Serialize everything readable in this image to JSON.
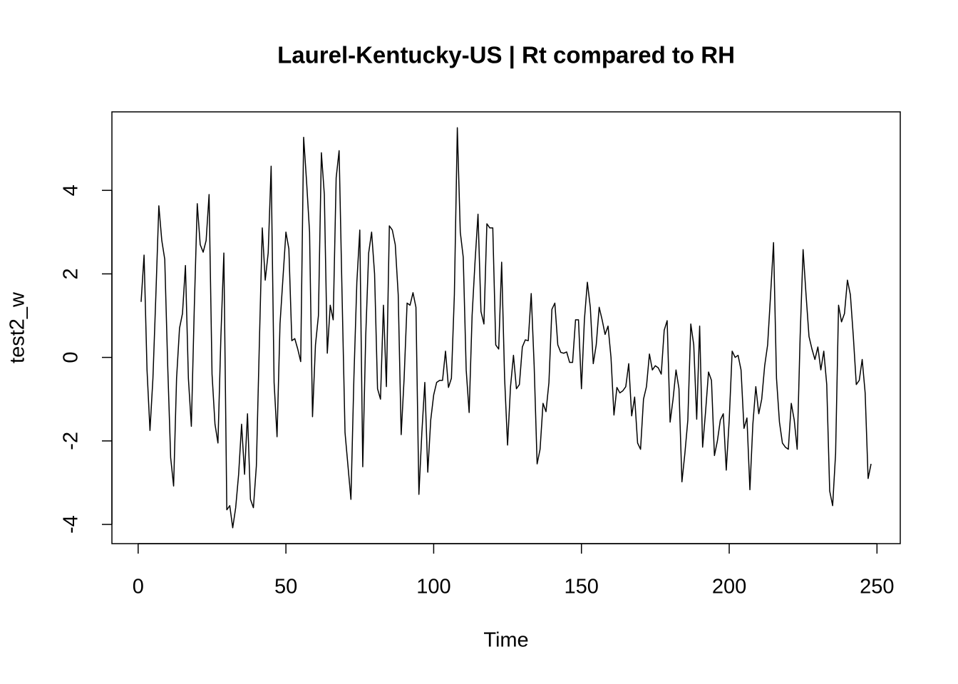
{
  "chart_data": {
    "type": "line",
    "title": "Laurel-Kentucky-US | Rt compared to RH",
    "xlabel": "Time",
    "ylabel": "test2_w",
    "x": [
      1,
      2,
      3,
      4,
      5,
      6,
      7,
      8,
      9,
      10,
      11,
      12,
      13,
      14,
      15,
      16,
      17,
      18,
      19,
      20,
      21,
      22,
      23,
      24,
      25,
      26,
      27,
      28,
      29,
      30,
      31,
      32,
      33,
      34,
      35,
      36,
      37,
      38,
      39,
      40,
      41,
      42,
      43,
      44,
      45,
      46,
      47,
      48,
      49,
      50,
      51,
      52,
      53,
      54,
      55,
      56,
      57,
      58,
      59,
      60,
      61,
      62,
      63,
      64,
      65,
      66,
      67,
      68,
      69,
      70,
      71,
      72,
      73,
      74,
      75,
      76,
      77,
      78,
      79,
      80,
      81,
      82,
      83,
      84,
      85,
      86,
      87,
      88,
      89,
      90,
      91,
      92,
      93,
      94,
      95,
      96,
      97,
      98,
      99,
      100,
      101,
      102,
      103,
      104,
      105,
      106,
      107,
      108,
      109,
      110,
      111,
      112,
      113,
      114,
      115,
      116,
      117,
      118,
      119,
      120,
      121,
      122,
      123,
      124,
      125,
      126,
      127,
      128,
      129,
      130,
      131,
      132,
      133,
      134,
      135,
      136,
      137,
      138,
      139,
      140,
      141,
      142,
      143,
      144,
      145,
      146,
      147,
      148,
      149,
      150,
      151,
      152,
      153,
      154,
      155,
      156,
      157,
      158,
      159,
      160,
      161,
      162,
      163,
      164,
      165,
      166,
      167,
      168,
      169,
      170,
      171,
      172,
      173,
      174,
      175,
      176,
      177,
      178,
      179,
      180,
      181,
      182,
      183,
      184,
      185,
      186,
      187,
      188,
      189,
      190,
      191,
      192,
      193,
      194,
      195,
      196,
      197,
      198,
      199,
      200,
      201,
      202,
      203,
      204,
      205,
      206,
      207,
      208,
      209,
      210,
      211,
      212,
      213,
      214,
      215,
      216,
      217,
      218,
      219,
      220,
      221,
      222,
      223,
      224,
      225,
      226,
      227,
      228,
      229,
      230,
      231,
      232,
      233,
      234,
      235,
      236,
      237,
      238,
      239,
      240,
      241,
      242,
      243,
      244,
      245,
      246,
      247,
      248
    ],
    "series": [
      {
        "color": "#000000",
        "values": [
          1.33,
          2.45,
          -0.3,
          -1.75,
          -0.5,
          1.5,
          3.63,
          2.8,
          2.35,
          -0.2,
          -2.4,
          -3.08,
          -0.5,
          0.7,
          1.05,
          2.2,
          -0.5,
          -1.65,
          1.2,
          3.68,
          2.7,
          2.52,
          2.8,
          3.9,
          -0.4,
          -1.6,
          -2.05,
          0.5,
          2.5,
          -3.65,
          -3.55,
          -4.08,
          -3.6,
          -2.8,
          -1.6,
          -2.8,
          -1.35,
          -3.4,
          -3.6,
          -2.6,
          0.3,
          3.1,
          1.85,
          2.5,
          4.58,
          -0.6,
          -1.9,
          0.8,
          1.9,
          3.0,
          2.6,
          0.4,
          0.45,
          0.2,
          -0.1,
          5.27,
          4.2,
          3.0,
          -1.42,
          0.3,
          1.0,
          4.9,
          3.9,
          0.1,
          1.25,
          0.9,
          4.3,
          4.95,
          1.5,
          -1.8,
          -2.6,
          -3.4,
          -0.5,
          1.8,
          3.05,
          -2.62,
          0.5,
          2.5,
          3.0,
          2.0,
          -0.75,
          -1.0,
          1.25,
          -0.7,
          3.15,
          3.05,
          2.7,
          1.5,
          -1.85,
          -0.5,
          1.3,
          1.25,
          1.55,
          1.2,
          -3.28,
          -1.8,
          -0.6,
          -2.75,
          -1.5,
          -0.9,
          -0.6,
          -0.55,
          -0.55,
          0.15,
          -0.72,
          -0.5,
          1.5,
          5.5,
          3.0,
          2.4,
          -0.3,
          -1.32,
          1.0,
          2.3,
          3.43,
          1.1,
          0.8,
          3.2,
          3.1,
          3.1,
          0.3,
          0.2,
          2.28,
          -0.5,
          -2.1,
          -0.7,
          0.05,
          -0.75,
          -0.65,
          0.25,
          0.42,
          0.4,
          1.53,
          -0.2,
          -2.55,
          -2.2,
          -1.1,
          -1.3,
          -0.6,
          1.15,
          1.3,
          0.3,
          0.12,
          0.1,
          0.13,
          -0.12,
          -0.12,
          0.9,
          0.9,
          -0.75,
          0.9,
          1.8,
          1.2,
          -0.15,
          0.3,
          1.2,
          0.9,
          0.55,
          0.75,
          0.0,
          -1.38,
          -0.72,
          -0.85,
          -0.8,
          -0.7,
          -0.15,
          -1.4,
          -0.95,
          -2.05,
          -2.2,
          -1.0,
          -0.7,
          0.08,
          -0.3,
          -0.2,
          -0.25,
          -0.4,
          0.65,
          0.88,
          -1.55,
          -1.0,
          -0.3,
          -0.75,
          -2.98,
          -2.3,
          -1.5,
          0.8,
          0.3,
          -1.48,
          0.75,
          -2.15,
          -1.3,
          -0.35,
          -0.55,
          -2.35,
          -2.0,
          -1.5,
          -1.35,
          -2.7,
          -1.5,
          0.15,
          0.0,
          0.05,
          -0.3,
          -1.7,
          -1.45,
          -3.17,
          -1.6,
          -0.7,
          -1.35,
          -1.0,
          -0.2,
          0.3,
          1.5,
          2.75,
          -0.5,
          -1.55,
          -2.05,
          -2.15,
          -2.2,
          -1.1,
          -1.5,
          -2.2,
          0.5,
          2.58,
          1.5,
          0.5,
          0.2,
          -0.05,
          0.25,
          -0.3,
          0.15,
          -0.65,
          -3.2,
          -3.55,
          -2.3,
          1.25,
          0.85,
          1.05,
          1.85,
          1.5,
          0.5,
          -0.65,
          -0.55,
          -0.05,
          -0.85,
          -2.9,
          -2.55
        ]
      }
    ],
    "xlim": [
      -8.88,
      257.88
    ],
    "xticks": [
      0,
      50,
      100,
      150,
      200,
      250
    ],
    "ylim": [
      -4.46,
      5.88
    ],
    "yticks": [
      -4,
      -2,
      0,
      2,
      4
    ]
  }
}
